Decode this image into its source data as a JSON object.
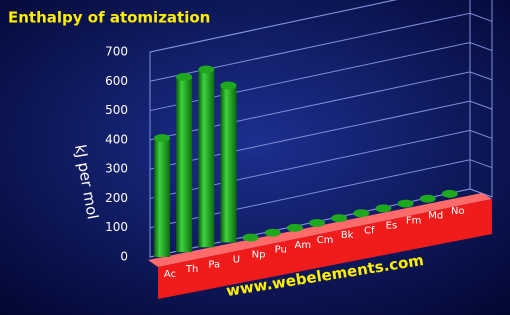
{
  "chart_data": {
    "type": "bar3d",
    "title": "Enthalpy of atomization",
    "y_label": "kJ per mol",
    "source": "www.webelements.com",
    "categories": [
      "Ac",
      "Th",
      "Pa",
      "U",
      "Np",
      "Pu",
      "Am",
      "Cm",
      "Bk",
      "Cf",
      "Es",
      "Fm",
      "Md",
      "No"
    ],
    "values": [
      406,
      598,
      607,
      536,
      0,
      0,
      0,
      0,
      0,
      0,
      0,
      0,
      0,
      0
    ],
    "color": "#1ea81e",
    "ylim": [
      0,
      700
    ],
    "yticks": [
      0,
      100,
      200,
      300,
      400,
      500,
      600,
      700
    ],
    "grid": true
  }
}
